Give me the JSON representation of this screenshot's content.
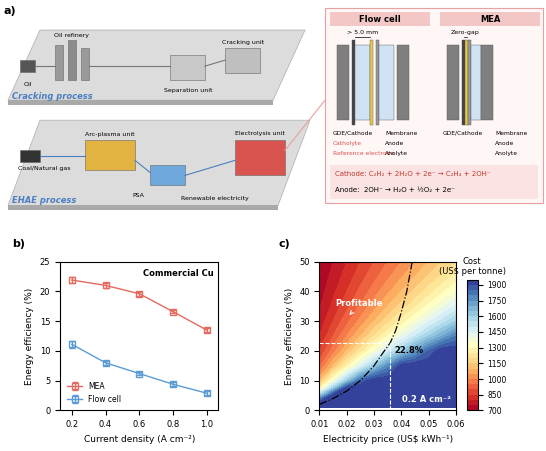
{
  "diagram": {
    "panel_label": "a)",
    "processes": [
      {
        "name": "Cracking process",
        "units": [
          "Oil",
          "Oil refinery",
          "Cracking unit",
          "Separation unit"
        ]
      },
      {
        "name": "EHAE process",
        "units": [
          "Coal/Natural gas",
          "Arc-plasma unit",
          "PSA",
          "Renewable electricity",
          "Electrolysis unit"
        ]
      }
    ],
    "cells": [
      {
        "title": "Flow cell",
        "gap": "> 5.0 mm",
        "left_labels": [
          "GDE/Cathode",
          "Catholyte",
          "Reference electrode"
        ],
        "right_labels": [
          "Membrane",
          "Anode",
          "Anolyte"
        ]
      },
      {
        "title": "MEA",
        "gap": "Zero-gap",
        "left_labels": [
          "GDE/Cathode"
        ],
        "right_labels": [
          "Membrane",
          "Anode",
          "Anolyte"
        ]
      }
    ],
    "reactions": [
      "Cathode: C₂H₂ + 2H₂O + 2e⁻ → C₂H₄ + 2OH⁻",
      "Anode:  2OH⁻ → H₂O + ½O₂ + 2e⁻"
    ]
  },
  "chart_data": [
    {
      "type": "line",
      "title": "b)",
      "x_label": "Current density (A cm⁻²)",
      "y_label": "Energy efficiency (%)",
      "annotations": [
        "Commercial Cu"
      ],
      "x": [
        0.2,
        0.4,
        0.6,
        0.8,
        1.0
      ],
      "series": [
        {
          "name": "MEA",
          "color": "#e26a5f",
          "marker": "s",
          "line_style": "solid",
          "values": [
            21.9,
            21.0,
            19.6,
            16.6,
            13.5
          ],
          "error": [
            0.5,
            0.4,
            0.3,
            0.3,
            0.4
          ]
        },
        {
          "name": "Flow cell",
          "color": "#5b9bd5",
          "marker": "s",
          "line_style": "solid",
          "values": [
            11.1,
            8.0,
            6.2,
            4.4,
            2.9
          ],
          "error": [
            0.6,
            0.3,
            0.3,
            0.3,
            0.3
          ]
        }
      ],
      "xlim": [
        0.13,
        1.07
      ],
      "xticks": [
        0.2,
        0.4,
        0.6,
        0.8,
        1.0
      ],
      "ylim": [
        0,
        25
      ],
      "yticks": [
        0,
        5,
        10,
        15,
        20,
        25
      ],
      "grid": false,
      "legend": "lower left"
    },
    {
      "type": "heatmap",
      "title": "c)",
      "x_label": "Electricity price (US$ kWh⁻¹)",
      "y_label": "Energy efficiency (%)",
      "x": [
        0.01,
        0.015,
        0.02,
        0.025,
        0.03,
        0.035,
        0.04,
        0.045,
        0.05,
        0.055,
        0.06
      ],
      "y": [
        1,
        2.5,
        5,
        7.5,
        10,
        15,
        20,
        25,
        30,
        35,
        40,
        45,
        50
      ],
      "values": [
        [
          1950,
          1950,
          1950,
          1950,
          1950,
          1950,
          1950,
          1950,
          1950,
          1950,
          1950
        ],
        [
          1950,
          1950,
          1950,
          1950,
          1950,
          1950,
          1950,
          1950,
          1950,
          1950,
          1950
        ],
        [
          1600,
          1950,
          1950,
          1950,
          1950,
          1950,
          1950,
          1950,
          1950,
          1950,
          1950
        ],
        [
          1267,
          1600,
          1933,
          1950,
          1950,
          1950,
          1950,
          1950,
          1950,
          1950,
          1950
        ],
        [
          1100,
          1350,
          1600,
          1850,
          1950,
          1950,
          1950,
          1950,
          1950,
          1950,
          1950
        ],
        [
          933,
          1100,
          1267,
          1433,
          1600,
          1767,
          1933,
          1950,
          1950,
          1950,
          1950
        ],
        [
          850,
          975,
          1100,
          1225,
          1350,
          1475,
          1600,
          1725,
          1850,
          1950,
          1950
        ],
        [
          800,
          900,
          1000,
          1100,
          1200,
          1300,
          1400,
          1500,
          1600,
          1700,
          1800
        ],
        [
          767,
          850,
          933,
          1017,
          1100,
          1183,
          1267,
          1350,
          1433,
          1517,
          1600
        ],
        [
          743,
          814,
          886,
          957,
          1029,
          1100,
          1171,
          1243,
          1314,
          1386,
          1457
        ],
        [
          725,
          788,
          850,
          913,
          975,
          1038,
          1100,
          1163,
          1225,
          1288,
          1350
        ],
        [
          711,
          767,
          822,
          878,
          933,
          989,
          1044,
          1100,
          1156,
          1211,
          1267
        ],
        [
          700,
          750,
          800,
          850,
          900,
          950,
          1000,
          1050,
          1100,
          1150,
          1200
        ]
      ],
      "xlim": [
        0.01,
        0.06
      ],
      "xticks": [
        0.01,
        0.02,
        0.03,
        0.04,
        0.05,
        0.06
      ],
      "ylim": [
        0,
        50
      ],
      "yticks": [
        0,
        10,
        20,
        30,
        40,
        50
      ],
      "colorbar_label": "Cost\n(US$ per tonne)",
      "colorbar_lim": [
        700,
        1950
      ],
      "colorbar_ticks": [
        700,
        850,
        1000,
        1150,
        1300,
        1450,
        1600,
        1750,
        1900
      ],
      "curve": {
        "x": [
          0.01,
          0.015,
          0.02,
          0.025,
          0.03,
          0.033,
          0.036,
          0.038,
          0.04,
          0.042,
          0.044
        ],
        "y": [
          2,
          4,
          6.5,
          10,
          15,
          19,
          22.8,
          27,
          33,
          40,
          50
        ],
        "line_style": "dashdot"
      },
      "threshold": {
        "x": 0.036,
        "y": 22.8,
        "label": "22.8%"
      },
      "annotations": [
        "Profitable",
        "0.2 A cm⁻²"
      ],
      "grid": false
    }
  ]
}
